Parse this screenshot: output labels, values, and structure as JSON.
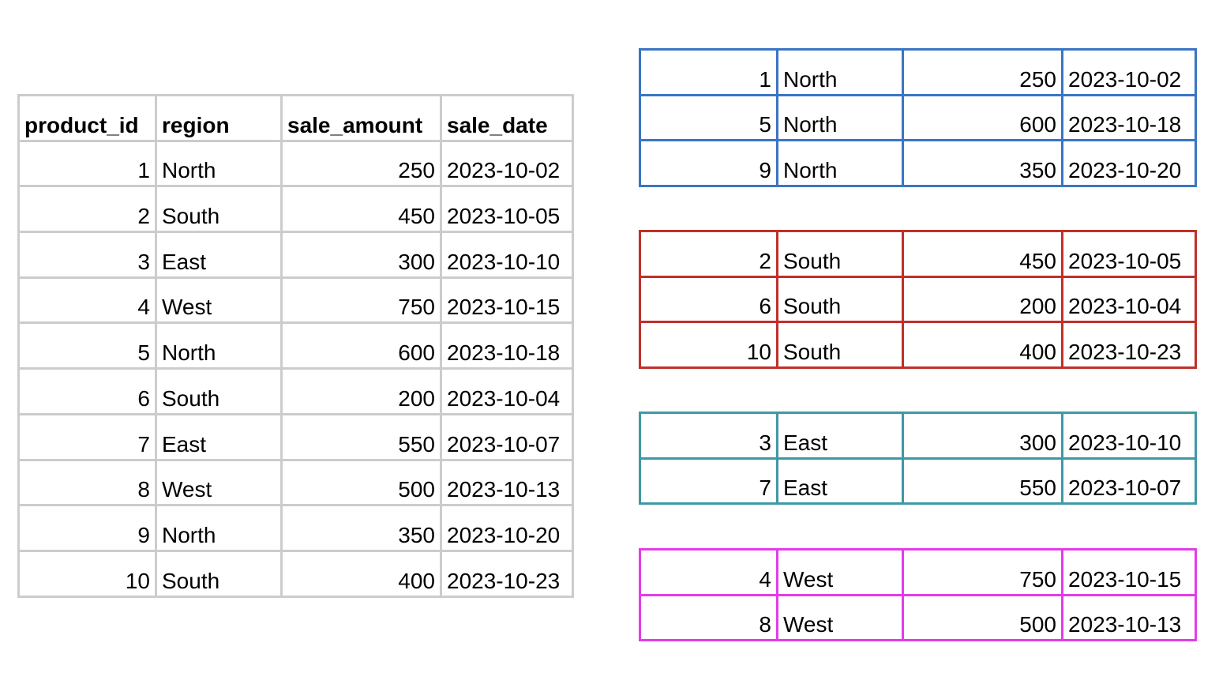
{
  "main_table": {
    "columns": [
      "product_id",
      "region",
      "sale_amount",
      "sale_date"
    ],
    "rows": [
      [
        "1",
        "North",
        "250",
        "2023-10-02"
      ],
      [
        "2",
        "South",
        "450",
        "2023-10-05"
      ],
      [
        "3",
        "East",
        "300",
        "2023-10-10"
      ],
      [
        "4",
        "West",
        "750",
        "2023-10-15"
      ],
      [
        "5",
        "North",
        "600",
        "2023-10-18"
      ],
      [
        "6",
        "South",
        "200",
        "2023-10-04"
      ],
      [
        "7",
        "East",
        "550",
        "2023-10-07"
      ],
      [
        "8",
        "West",
        "500",
        "2023-10-13"
      ],
      [
        "9",
        "North",
        "350",
        "2023-10-20"
      ],
      [
        "10",
        "South",
        "400",
        "2023-10-23"
      ]
    ]
  },
  "groups": [
    {
      "id": "north",
      "color": "#3a75c4",
      "rows": [
        [
          "1",
          "North",
          "250",
          "2023-10-02"
        ],
        [
          "5",
          "North",
          "600",
          "2023-10-18"
        ],
        [
          "9",
          "North",
          "350",
          "2023-10-20"
        ]
      ]
    },
    {
      "id": "south",
      "color": "#c0302b",
      "rows": [
        [
          "2",
          "South",
          "450",
          "2023-10-05"
        ],
        [
          "6",
          "South",
          "200",
          "2023-10-04"
        ],
        [
          "10",
          "South",
          "400",
          "2023-10-23"
        ]
      ]
    },
    {
      "id": "east",
      "color": "#3f99a4",
      "rows": [
        [
          "3",
          "East",
          "300",
          "2023-10-10"
        ],
        [
          "7",
          "East",
          "550",
          "2023-10-07"
        ]
      ]
    },
    {
      "id": "west",
      "color": "#e23de8",
      "rows": [
        [
          "4",
          "West",
          "750",
          "2023-10-15"
        ],
        [
          "8",
          "West",
          "500",
          "2023-10-13"
        ]
      ]
    }
  ]
}
